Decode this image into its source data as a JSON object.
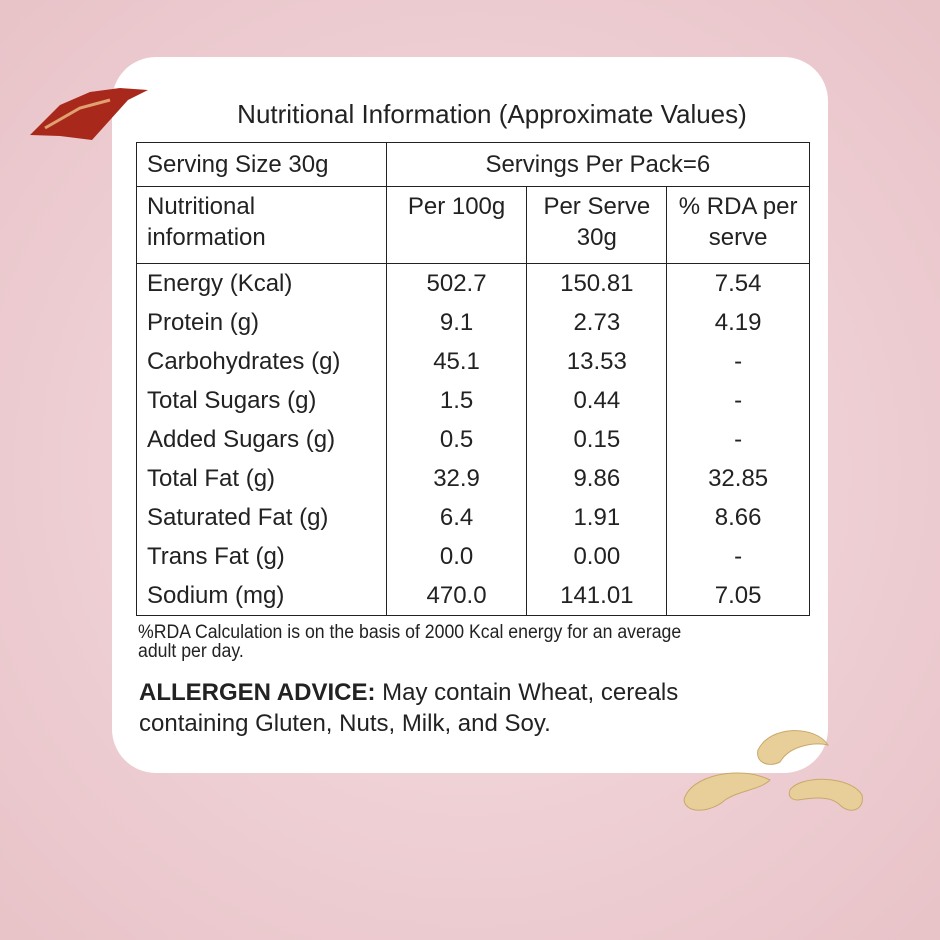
{
  "title": "Nutritional Information (Approximate Values)",
  "table": {
    "serving": [
      "Serving Size 30g",
      "Servings Per Pack=6"
    ],
    "header": [
      "Nutritional information",
      "Per 100g",
      "Per Serve 30g",
      "% RDA per serve"
    ],
    "rows": [
      [
        "Energy (Kcal)",
        "502.7",
        "150.81",
        "7.54"
      ],
      [
        "Protein (g)",
        "9.1",
        "2.73",
        "4.19"
      ],
      [
        "Carbohydrates (g)",
        "45.1",
        "13.53",
        "-"
      ],
      [
        "Total Sugars (g)",
        "1.5",
        "0.44",
        "-"
      ],
      [
        "Added Sugars (g)",
        "0.5",
        "0.15",
        "-"
      ],
      [
        "Total Fat (g)",
        "32.9",
        "9.86",
        "32.85"
      ],
      [
        "Saturated Fat (g)",
        "6.4",
        "1.91",
        "8.66"
      ],
      [
        "Trans Fat (g)",
        "0.0",
        "0.00",
        "-"
      ],
      [
        "Sodium (mg)",
        "470.0",
        "141.01",
        "7.05"
      ]
    ]
  },
  "footnote": "%RDA Calculation is on the basis of 2000 Kcal energy for an average adult per day.",
  "allergen": {
    "label": "ALLERGEN ADVICE:",
    "text": "May contain Wheat, cereals containing Gluten, Nuts, Milk, and Soy."
  }
}
